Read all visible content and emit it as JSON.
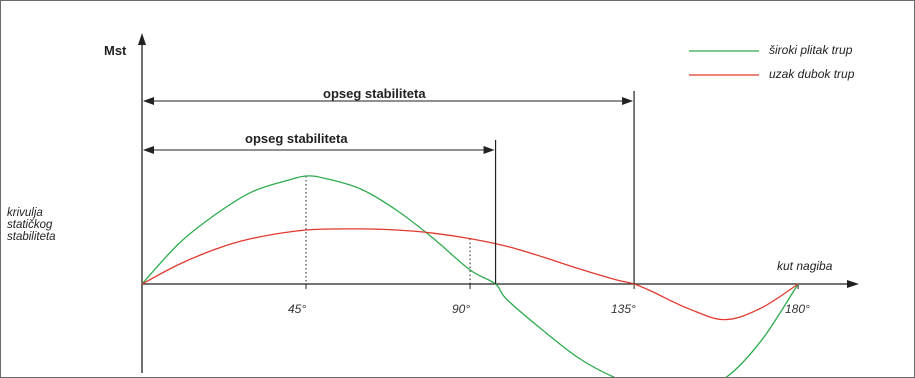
{
  "chart_data": {
    "type": "line",
    "ylabel": "Mst",
    "xlabel": "kut nagiba",
    "curve_label": [
      "krivulja",
      "statičkog",
      "stabiliteta"
    ],
    "x_ticks": [
      {
        "value": 45,
        "label": "45°"
      },
      {
        "value": 90,
        "label": "90°"
      },
      {
        "value": 135,
        "label": "135°"
      },
      {
        "value": 180,
        "label": "180°"
      }
    ],
    "xlim": [
      0,
      195
    ],
    "ylim": [
      -1.0,
      1.45
    ],
    "series": [
      {
        "name": "široki plitak trup",
        "color": "#2eab4e",
        "x": [
          0,
          10,
          20,
          30,
          40,
          45,
          50,
          60,
          70,
          80,
          90,
          97,
          100,
          110,
          120,
          130,
          140,
          150,
          160,
          170,
          180
        ],
        "y": [
          0,
          0.37,
          0.64,
          0.85,
          0.96,
          1.0,
          0.98,
          0.88,
          0.68,
          0.42,
          0.13,
          0,
          -0.14,
          -0.43,
          -0.69,
          -0.87,
          -0.98,
          -0.99,
          -0.87,
          -0.52,
          0
        ]
      },
      {
        "name": "uzak dubok trup",
        "color": "#e03a2e",
        "x": [
          0,
          10,
          20,
          30,
          45,
          60,
          70,
          80,
          90,
          100,
          110,
          120,
          130,
          135,
          140,
          150,
          160,
          170,
          180
        ],
        "y": [
          0,
          0.18,
          0.32,
          0.42,
          0.5,
          0.51,
          0.5,
          0.47,
          0.42,
          0.35,
          0.25,
          0.14,
          0.04,
          0,
          -0.07,
          -0.23,
          -0.33,
          -0.22,
          0
        ]
      }
    ],
    "stability_ranges": [
      {
        "label": "opseg stabiliteta",
        "from": 0,
        "to": 97
      },
      {
        "label": "opseg stabiliteta",
        "from": 0,
        "to": 135
      }
    ],
    "markers": [
      {
        "x": 45,
        "y": 1.0
      },
      {
        "x": 90,
        "y": 0.42
      }
    ],
    "legend_position": "top-right"
  }
}
